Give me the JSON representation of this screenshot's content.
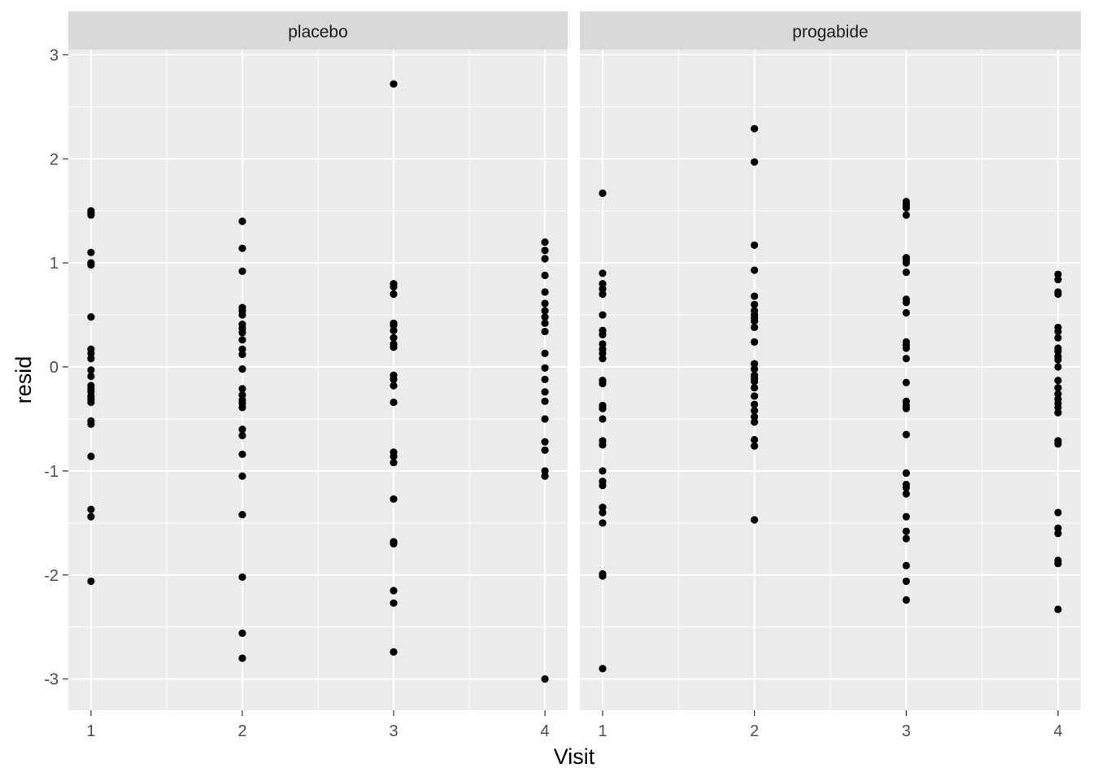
{
  "chart_data": {
    "type": "scatter",
    "xlabel": "Visit",
    "ylabel": "resid",
    "x_ticks": [
      "1",
      "2",
      "3",
      "4"
    ],
    "y_ticks": [
      "-3",
      "-2",
      "-1",
      "0",
      "1",
      "2",
      "3"
    ],
    "xlim": [
      0.85,
      4.15
    ],
    "ylim": [
      -3.3,
      3.05
    ],
    "grid": true,
    "point_color": "#000000",
    "panel_background": "#ebebeb",
    "strip_background": "#d9d9d9",
    "panels": [
      {
        "label": "placebo",
        "points": [
          {
            "x": 1,
            "y": 1.5
          },
          {
            "x": 1,
            "y": 1.48
          },
          {
            "x": 1,
            "y": 1.46
          },
          {
            "x": 1,
            "y": 1.1
          },
          {
            "x": 1,
            "y": 1.0
          },
          {
            "x": 1,
            "y": 0.98
          },
          {
            "x": 1,
            "y": 0.48
          },
          {
            "x": 1,
            "y": 0.17
          },
          {
            "x": 1,
            "y": 0.13
          },
          {
            "x": 1,
            "y": 0.08
          },
          {
            "x": 1,
            "y": -0.03
          },
          {
            "x": 1,
            "y": -0.09
          },
          {
            "x": 1,
            "y": -0.18
          },
          {
            "x": 1,
            "y": -0.21
          },
          {
            "x": 1,
            "y": -0.24
          },
          {
            "x": 1,
            "y": -0.28
          },
          {
            "x": 1,
            "y": -0.31
          },
          {
            "x": 1,
            "y": -0.34
          },
          {
            "x": 1,
            "y": -0.52
          },
          {
            "x": 1,
            "y": -0.55
          },
          {
            "x": 1,
            "y": -0.86
          },
          {
            "x": 1,
            "y": -1.37
          },
          {
            "x": 1,
            "y": -1.44
          },
          {
            "x": 1,
            "y": -2.06
          },
          {
            "x": 2,
            "y": 1.4
          },
          {
            "x": 2,
            "y": 1.14
          },
          {
            "x": 2,
            "y": 0.92
          },
          {
            "x": 2,
            "y": 0.57
          },
          {
            "x": 2,
            "y": 0.54
          },
          {
            "x": 2,
            "y": 0.5
          },
          {
            "x": 2,
            "y": 0.41
          },
          {
            "x": 2,
            "y": 0.37
          },
          {
            "x": 2,
            "y": 0.33
          },
          {
            "x": 2,
            "y": 0.26
          },
          {
            "x": 2,
            "y": 0.17
          },
          {
            "x": 2,
            "y": 0.12
          },
          {
            "x": 2,
            "y": -0.02
          },
          {
            "x": 2,
            "y": -0.21
          },
          {
            "x": 2,
            "y": -0.27
          },
          {
            "x": 2,
            "y": -0.32
          },
          {
            "x": 2,
            "y": -0.35
          },
          {
            "x": 2,
            "y": -0.39
          },
          {
            "x": 2,
            "y": -0.6
          },
          {
            "x": 2,
            "y": -0.66
          },
          {
            "x": 2,
            "y": -0.84
          },
          {
            "x": 2,
            "y": -1.05
          },
          {
            "x": 2,
            "y": -1.42
          },
          {
            "x": 2,
            "y": -2.02
          },
          {
            "x": 2,
            "y": -2.56
          },
          {
            "x": 2,
            "y": -2.8
          },
          {
            "x": 3,
            "y": 2.72
          },
          {
            "x": 3,
            "y": 0.8
          },
          {
            "x": 3,
            "y": 0.77
          },
          {
            "x": 3,
            "y": 0.7
          },
          {
            "x": 3,
            "y": 0.42
          },
          {
            "x": 3,
            "y": 0.4
          },
          {
            "x": 3,
            "y": 0.35
          },
          {
            "x": 3,
            "y": 0.28
          },
          {
            "x": 3,
            "y": 0.22
          },
          {
            "x": 3,
            "y": 0.19
          },
          {
            "x": 3,
            "y": -0.08
          },
          {
            "x": 3,
            "y": -0.12
          },
          {
            "x": 3,
            "y": -0.18
          },
          {
            "x": 3,
            "y": -0.34
          },
          {
            "x": 3,
            "y": -0.82
          },
          {
            "x": 3,
            "y": -0.86
          },
          {
            "x": 3,
            "y": -0.92
          },
          {
            "x": 3,
            "y": -1.27
          },
          {
            "x": 3,
            "y": -1.68
          },
          {
            "x": 3,
            "y": -1.7
          },
          {
            "x": 3,
            "y": -2.15
          },
          {
            "x": 3,
            "y": -2.27
          },
          {
            "x": 3,
            "y": -2.74
          },
          {
            "x": 4,
            "y": 1.2
          },
          {
            "x": 4,
            "y": 1.12
          },
          {
            "x": 4,
            "y": 1.04
          },
          {
            "x": 4,
            "y": 0.88
          },
          {
            "x": 4,
            "y": 0.72
          },
          {
            "x": 4,
            "y": 0.61
          },
          {
            "x": 4,
            "y": 0.54
          },
          {
            "x": 4,
            "y": 0.48
          },
          {
            "x": 4,
            "y": 0.42
          },
          {
            "x": 4,
            "y": 0.34
          },
          {
            "x": 4,
            "y": 0.13
          },
          {
            "x": 4,
            "y": -0.01
          },
          {
            "x": 4,
            "y": -0.12
          },
          {
            "x": 4,
            "y": -0.24
          },
          {
            "x": 4,
            "y": -0.33
          },
          {
            "x": 4,
            "y": -0.5
          },
          {
            "x": 4,
            "y": -0.72
          },
          {
            "x": 4,
            "y": -0.8
          },
          {
            "x": 4,
            "y": -1.0
          },
          {
            "x": 4,
            "y": -1.05
          },
          {
            "x": 4,
            "y": -3.0
          }
        ]
      },
      {
        "label": "progabide",
        "points": [
          {
            "x": 1,
            "y": 1.67
          },
          {
            "x": 1,
            "y": 0.9
          },
          {
            "x": 1,
            "y": 0.8
          },
          {
            "x": 1,
            "y": 0.75
          },
          {
            "x": 1,
            "y": 0.7
          },
          {
            "x": 1,
            "y": 0.5
          },
          {
            "x": 1,
            "y": 0.35
          },
          {
            "x": 1,
            "y": 0.31
          },
          {
            "x": 1,
            "y": 0.22
          },
          {
            "x": 1,
            "y": 0.17
          },
          {
            "x": 1,
            "y": 0.13
          },
          {
            "x": 1,
            "y": 0.08
          },
          {
            "x": 1,
            "y": -0.13
          },
          {
            "x": 1,
            "y": -0.16
          },
          {
            "x": 1,
            "y": -0.37
          },
          {
            "x": 1,
            "y": -0.4
          },
          {
            "x": 1,
            "y": -0.5
          },
          {
            "x": 1,
            "y": -0.71
          },
          {
            "x": 1,
            "y": -0.75
          },
          {
            "x": 1,
            "y": -1.0
          },
          {
            "x": 1,
            "y": -1.1
          },
          {
            "x": 1,
            "y": -1.14
          },
          {
            "x": 1,
            "y": -1.35
          },
          {
            "x": 1,
            "y": -1.4
          },
          {
            "x": 1,
            "y": -1.5
          },
          {
            "x": 1,
            "y": -1.99
          },
          {
            "x": 1,
            "y": -2.01
          },
          {
            "x": 1,
            "y": -2.9
          },
          {
            "x": 2,
            "y": 2.29
          },
          {
            "x": 2,
            "y": 1.97
          },
          {
            "x": 2,
            "y": 1.17
          },
          {
            "x": 2,
            "y": 0.93
          },
          {
            "x": 2,
            "y": 0.68
          },
          {
            "x": 2,
            "y": 0.6
          },
          {
            "x": 2,
            "y": 0.54
          },
          {
            "x": 2,
            "y": 0.5
          },
          {
            "x": 2,
            "y": 0.47
          },
          {
            "x": 2,
            "y": 0.44
          },
          {
            "x": 2,
            "y": 0.38
          },
          {
            "x": 2,
            "y": 0.24
          },
          {
            "x": 2,
            "y": 0.03
          },
          {
            "x": 2,
            "y": -0.02
          },
          {
            "x": 2,
            "y": -0.08
          },
          {
            "x": 2,
            "y": -0.11
          },
          {
            "x": 2,
            "y": -0.14
          },
          {
            "x": 2,
            "y": -0.2
          },
          {
            "x": 2,
            "y": -0.28
          },
          {
            "x": 2,
            "y": -0.36
          },
          {
            "x": 2,
            "y": -0.42
          },
          {
            "x": 2,
            "y": -0.48
          },
          {
            "x": 2,
            "y": -0.53
          },
          {
            "x": 2,
            "y": -0.7
          },
          {
            "x": 2,
            "y": -0.76
          },
          {
            "x": 2,
            "y": -1.47
          },
          {
            "x": 3,
            "y": 1.59
          },
          {
            "x": 3,
            "y": 1.56
          },
          {
            "x": 3,
            "y": 1.53
          },
          {
            "x": 3,
            "y": 1.46
          },
          {
            "x": 3,
            "y": 1.05
          },
          {
            "x": 3,
            "y": 1.03
          },
          {
            "x": 3,
            "y": 1.0
          },
          {
            "x": 3,
            "y": 0.91
          },
          {
            "x": 3,
            "y": 0.65
          },
          {
            "x": 3,
            "y": 0.62
          },
          {
            "x": 3,
            "y": 0.52
          },
          {
            "x": 3,
            "y": 0.24
          },
          {
            "x": 3,
            "y": 0.21
          },
          {
            "x": 3,
            "y": 0.18
          },
          {
            "x": 3,
            "y": 0.08
          },
          {
            "x": 3,
            "y": -0.15
          },
          {
            "x": 3,
            "y": -0.33
          },
          {
            "x": 3,
            "y": -0.37
          },
          {
            "x": 3,
            "y": -0.4
          },
          {
            "x": 3,
            "y": -0.65
          },
          {
            "x": 3,
            "y": -1.02
          },
          {
            "x": 3,
            "y": -1.13
          },
          {
            "x": 3,
            "y": -1.16
          },
          {
            "x": 3,
            "y": -1.22
          },
          {
            "x": 3,
            "y": -1.44
          },
          {
            "x": 3,
            "y": -1.58
          },
          {
            "x": 3,
            "y": -1.65
          },
          {
            "x": 3,
            "y": -1.91
          },
          {
            "x": 3,
            "y": -2.06
          },
          {
            "x": 3,
            "y": -2.24
          },
          {
            "x": 4,
            "y": 0.89
          },
          {
            "x": 4,
            "y": 0.84
          },
          {
            "x": 4,
            "y": 0.72
          },
          {
            "x": 4,
            "y": 0.7
          },
          {
            "x": 4,
            "y": 0.38
          },
          {
            "x": 4,
            "y": 0.34
          },
          {
            "x": 4,
            "y": 0.28
          },
          {
            "x": 4,
            "y": 0.18
          },
          {
            "x": 4,
            "y": 0.15
          },
          {
            "x": 4,
            "y": 0.1
          },
          {
            "x": 4,
            "y": 0.07
          },
          {
            "x": 4,
            "y": 0.0
          },
          {
            "x": 4,
            "y": -0.13
          },
          {
            "x": 4,
            "y": -0.2
          },
          {
            "x": 4,
            "y": -0.26
          },
          {
            "x": 4,
            "y": -0.31
          },
          {
            "x": 4,
            "y": -0.35
          },
          {
            "x": 4,
            "y": -0.39
          },
          {
            "x": 4,
            "y": -0.44
          },
          {
            "x": 4,
            "y": -0.71
          },
          {
            "x": 4,
            "y": -0.74
          },
          {
            "x": 4,
            "y": -1.4
          },
          {
            "x": 4,
            "y": -1.55
          },
          {
            "x": 4,
            "y": -1.6
          },
          {
            "x": 4,
            "y": -1.86
          },
          {
            "x": 4,
            "y": -1.89
          },
          {
            "x": 4,
            "y": -2.33
          }
        ]
      }
    ]
  }
}
